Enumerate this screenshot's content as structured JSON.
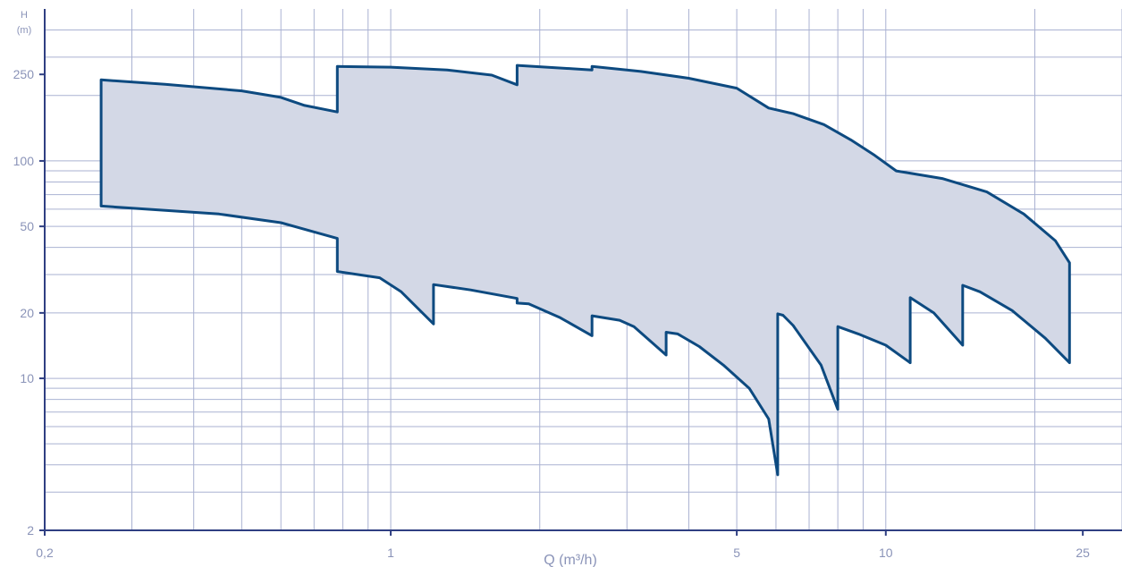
{
  "chart_data": {
    "type": "area",
    "xlabel": "Q (m³/h)",
    "ylabel": "H",
    "ylabel_unit": "(m)",
    "x_scale": "log",
    "y_scale": "log",
    "xlim": [
      0.2,
      30
    ],
    "ylim": [
      2,
      500
    ],
    "grid": true,
    "x_ticks": [
      {
        "value": 0.2,
        "label": "0,2"
      },
      {
        "value": 1,
        "label": "1"
      },
      {
        "value": 5,
        "label": "5"
      },
      {
        "value": 10,
        "label": "10"
      },
      {
        "value": 25,
        "label": "25"
      }
    ],
    "y_ticks": [
      {
        "value": 2,
        "label": "2"
      },
      {
        "value": 10,
        "label": "10"
      },
      {
        "value": 20,
        "label": "20"
      },
      {
        "value": 50,
        "label": "50"
      },
      {
        "value": 100,
        "label": "100"
      },
      {
        "value": 250,
        "label": "250"
      }
    ],
    "x_grid": [
      0.3,
      0.4,
      0.5,
      0.6,
      0.7,
      0.8,
      0.9,
      1,
      2,
      3,
      4,
      5,
      6,
      7,
      8,
      9,
      10,
      20,
      30
    ],
    "y_grid": [
      3,
      4,
      5,
      6,
      7,
      8,
      9,
      10,
      20,
      30,
      40,
      50,
      60,
      70,
      80,
      90,
      100,
      200,
      300,
      400
    ],
    "fill_color": "#d3d8e6",
    "line_color": "#0d4a80",
    "series": [
      {
        "points": [
          [
            0.26,
            236
          ],
          [
            0.35,
            225
          ],
          [
            0.5,
            210
          ],
          [
            0.6,
            196
          ],
          [
            0.67,
            180
          ],
          [
            0.78,
            168
          ],
          [
            0.78,
            272
          ],
          [
            1.0,
            270
          ],
          [
            1.3,
            262
          ],
          [
            1.6,
            248
          ],
          [
            1.8,
            224
          ],
          [
            1.8,
            275
          ],
          [
            2.35,
            265
          ],
          [
            2.55,
            262
          ],
          [
            2.55,
            272
          ],
          [
            3.2,
            258
          ],
          [
            4.0,
            240
          ],
          [
            5.0,
            216
          ],
          [
            5.8,
            175
          ],
          [
            6.5,
            165
          ],
          [
            7.5,
            147
          ],
          [
            8.5,
            125
          ],
          [
            9.5,
            106
          ],
          [
            10.5,
            90
          ],
          [
            13.0,
            83
          ],
          [
            16.0,
            72
          ],
          [
            19.0,
            57
          ],
          [
            22.0,
            43
          ],
          [
            23.5,
            34
          ],
          [
            23.5,
            11.8
          ],
          [
            21.0,
            15.3
          ],
          [
            18.0,
            20.5
          ],
          [
            15.5,
            25.0
          ],
          [
            14.3,
            26.8
          ],
          [
            14.3,
            14.2
          ],
          [
            12.5,
            20.0
          ],
          [
            11.2,
            23.5
          ],
          [
            11.2,
            11.8
          ],
          [
            10.0,
            14.2
          ],
          [
            8.8,
            16.0
          ],
          [
            8.0,
            17.3
          ],
          [
            8.0,
            7.2
          ],
          [
            7.4,
            11.5
          ],
          [
            6.5,
            17.5
          ],
          [
            6.2,
            19.5
          ],
          [
            6.05,
            19.8
          ],
          [
            6.05,
            3.6
          ],
          [
            5.8,
            6.5
          ],
          [
            5.3,
            9.0
          ],
          [
            4.7,
            11.5
          ],
          [
            4.2,
            14.0
          ],
          [
            3.8,
            16.0
          ],
          [
            3.6,
            16.3
          ],
          [
            3.6,
            12.8
          ],
          [
            3.1,
            17.3
          ],
          [
            2.9,
            18.5
          ],
          [
            2.55,
            19.4
          ],
          [
            2.55,
            15.7
          ],
          [
            2.2,
            19.0
          ],
          [
            1.9,
            22.0
          ],
          [
            1.8,
            22.2
          ],
          [
            1.8,
            23.3
          ],
          [
            1.45,
            25.5
          ],
          [
            1.22,
            27.0
          ],
          [
            1.22,
            17.8
          ],
          [
            1.05,
            25.0
          ],
          [
            0.95,
            29.0
          ],
          [
            0.78,
            31.0
          ],
          [
            0.78,
            44.0
          ],
          [
            0.6,
            52.0
          ],
          [
            0.45,
            57.0
          ],
          [
            0.26,
            62.0
          ]
        ]
      }
    ]
  }
}
